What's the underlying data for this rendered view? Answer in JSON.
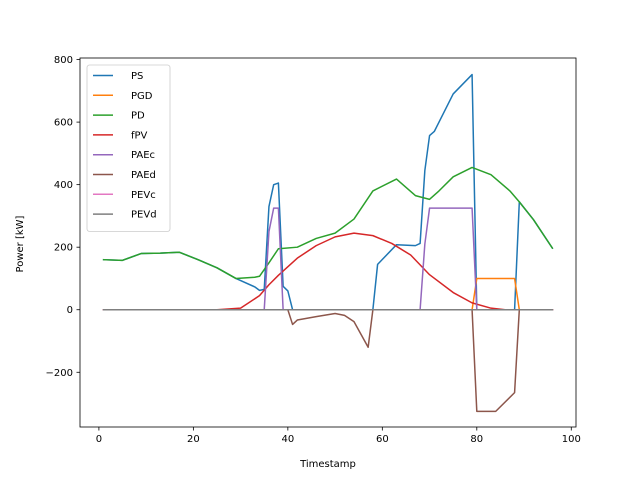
{
  "chart_data": {
    "type": "line",
    "title": "",
    "xlabel": "Timestamp",
    "ylabel": "Power [kW]",
    "xlim": [
      -4,
      101
    ],
    "ylim": [
      -375,
      805
    ],
    "x_ticks": [
      0,
      20,
      40,
      60,
      80,
      100
    ],
    "y_ticks": [
      -200,
      0,
      200,
      400,
      600,
      800
    ],
    "y_tick_labels": [
      "−200",
      "0",
      "200",
      "400",
      "600",
      "800"
    ],
    "grid": false,
    "legend_position": "top-left",
    "series": [
      {
        "name": "PS",
        "color": "#1f77b4",
        "points": [
          [
            1,
            160
          ],
          [
            5,
            158
          ],
          [
            9,
            180
          ],
          [
            13,
            181
          ],
          [
            17,
            184
          ],
          [
            21,
            160
          ],
          [
            25,
            134
          ],
          [
            29,
            100
          ],
          [
            33,
            73
          ],
          [
            34,
            62
          ],
          [
            35,
            65
          ],
          [
            36,
            330
          ],
          [
            37,
            400
          ],
          [
            38,
            405
          ],
          [
            39,
            75
          ],
          [
            40,
            60
          ],
          [
            41,
            0
          ],
          [
            45,
            0
          ],
          [
            50,
            0
          ],
          [
            55,
            0
          ],
          [
            57,
            0
          ],
          [
            58,
            0
          ],
          [
            59,
            145
          ],
          [
            63,
            208
          ],
          [
            67,
            205
          ],
          [
            68,
            212
          ],
          [
            69,
            445
          ],
          [
            70,
            557
          ],
          [
            71,
            570
          ],
          [
            75,
            690
          ],
          [
            79,
            752
          ],
          [
            80,
            0
          ],
          [
            84,
            0
          ],
          [
            88,
            0
          ],
          [
            89,
            345
          ],
          [
            92,
            288
          ],
          [
            96,
            197
          ]
        ]
      },
      {
        "name": "PGD",
        "color": "#ff7f0e",
        "points": [
          [
            1,
            0
          ],
          [
            79,
            0
          ],
          [
            80,
            100
          ],
          [
            88,
            100
          ],
          [
            89,
            0
          ],
          [
            96,
            0
          ]
        ]
      },
      {
        "name": "PD",
        "color": "#2ca02c",
        "points": [
          [
            1,
            160
          ],
          [
            5,
            158
          ],
          [
            9,
            180
          ],
          [
            13,
            181
          ],
          [
            17,
            184
          ],
          [
            21,
            160
          ],
          [
            25,
            134
          ],
          [
            29,
            100
          ],
          [
            33,
            104
          ],
          [
            34,
            107
          ],
          [
            36,
            150
          ],
          [
            38,
            195
          ],
          [
            42,
            200
          ],
          [
            46,
            228
          ],
          [
            50,
            245
          ],
          [
            54,
            290
          ],
          [
            58,
            380
          ],
          [
            63,
            418
          ],
          [
            67,
            365
          ],
          [
            70,
            353
          ],
          [
            72,
            380
          ],
          [
            75,
            425
          ],
          [
            79,
            455
          ],
          [
            83,
            432
          ],
          [
            87,
            380
          ],
          [
            89,
            345
          ],
          [
            92,
            288
          ],
          [
            96,
            197
          ]
        ]
      },
      {
        "name": "fPV",
        "color": "#d62728",
        "points": [
          [
            1,
            0
          ],
          [
            25,
            0
          ],
          [
            30,
            5
          ],
          [
            34,
            45
          ],
          [
            36,
            80
          ],
          [
            38,
            110
          ],
          [
            42,
            165
          ],
          [
            46,
            205
          ],
          [
            50,
            233
          ],
          [
            54,
            245
          ],
          [
            58,
            237
          ],
          [
            62,
            212
          ],
          [
            66,
            175
          ],
          [
            70,
            112
          ],
          [
            75,
            55
          ],
          [
            79,
            22
          ],
          [
            83,
            5
          ],
          [
            86,
            0
          ],
          [
            96,
            0
          ]
        ]
      },
      {
        "name": "PAEc",
        "color": "#9467bd",
        "points": [
          [
            1,
            0
          ],
          [
            35,
            0
          ],
          [
            36,
            250
          ],
          [
            37,
            325
          ],
          [
            38,
            325
          ],
          [
            39,
            0
          ],
          [
            68,
            0
          ],
          [
            69,
            210
          ],
          [
            70,
            325
          ],
          [
            79,
            325
          ],
          [
            80,
            0
          ],
          [
            96,
            0
          ]
        ]
      },
      {
        "name": "PAEd",
        "color": "#8c564b",
        "points": [
          [
            1,
            0
          ],
          [
            40,
            0
          ],
          [
            41,
            -47
          ],
          [
            42,
            -33
          ],
          [
            46,
            -22
          ],
          [
            50,
            -12
          ],
          [
            52,
            -18
          ],
          [
            54,
            -38
          ],
          [
            57,
            -120
          ],
          [
            58,
            0
          ],
          [
            79,
            0
          ],
          [
            80,
            -325
          ],
          [
            84,
            -325
          ],
          [
            88,
            -265
          ],
          [
            89,
            0
          ],
          [
            96,
            0
          ]
        ]
      },
      {
        "name": "PEVc",
        "color": "#e377c2",
        "points": [
          [
            1,
            0
          ],
          [
            96,
            0
          ]
        ]
      },
      {
        "name": "PEVd",
        "color": "#7f7f7f",
        "points": [
          [
            1,
            0
          ],
          [
            96,
            0
          ]
        ]
      }
    ]
  }
}
